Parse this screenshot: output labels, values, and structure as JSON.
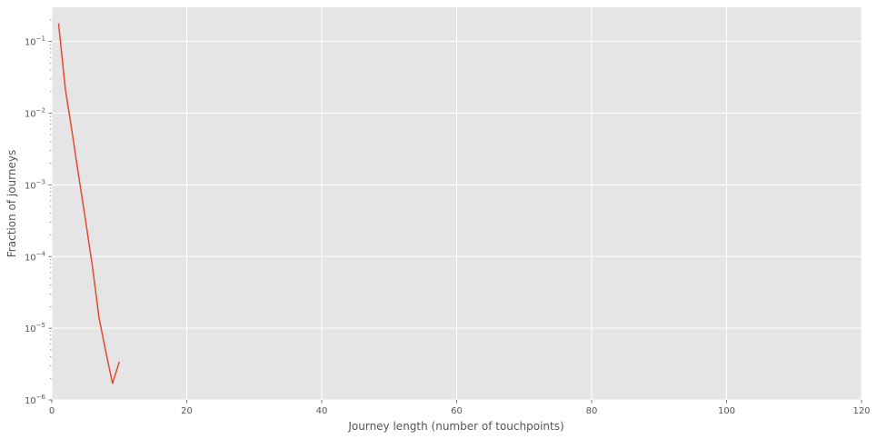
{
  "chart_data": {
    "type": "line",
    "title": "",
    "xlabel": "Journey length (number of touchpoints)",
    "ylabel": "Fraction of journeys",
    "xlim": [
      0,
      120
    ],
    "ylim": [
      1e-06,
      0.3
    ],
    "yscale": "log",
    "grid": true,
    "xticks": [
      0,
      20,
      40,
      60,
      80,
      100,
      120
    ],
    "xtick_labels": [
      "0",
      "20",
      "40",
      "60",
      "80",
      "100",
      "120"
    ],
    "yticks": [
      1e-06,
      1e-05,
      0.0001,
      0.001,
      0.01,
      0.1
    ],
    "ytick_labels": [
      {
        "base": "10",
        "exp": "−6"
      },
      {
        "base": "10",
        "exp": "−5"
      },
      {
        "base": "10",
        "exp": "−4"
      },
      {
        "base": "10",
        "exp": "−3"
      },
      {
        "base": "10",
        "exp": "−2"
      },
      {
        "base": "10",
        "exp": "−1"
      }
    ],
    "series": [
      {
        "color": "#E24A33",
        "x": [
          1,
          2,
          3,
          4,
          5,
          6,
          7,
          8,
          9,
          10
        ],
        "y": [
          0.18,
          0.022,
          0.0055,
          0.0013,
          0.00032,
          7.5e-05,
          1.4e-05,
          4.7e-06,
          1.7e-06,
          3.4e-06
        ]
      }
    ]
  },
  "colors": {
    "plot_background": "#E5E5E5",
    "grid": "#FFFFFF",
    "text": "#555555"
  }
}
